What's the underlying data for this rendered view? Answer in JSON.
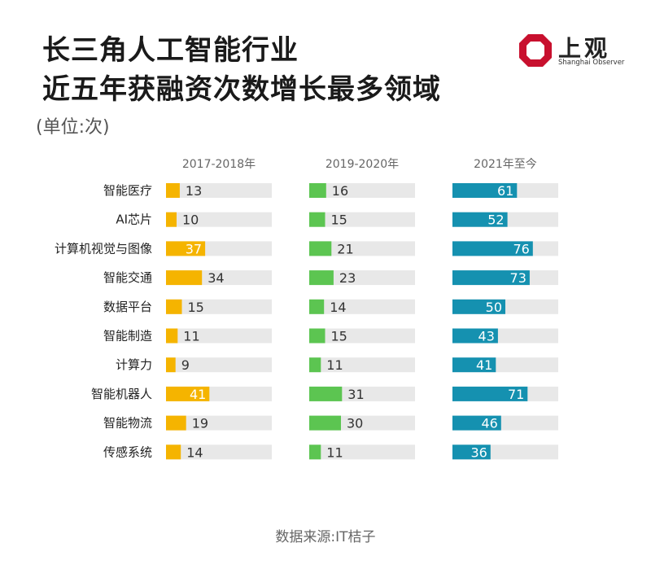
{
  "title_lines": [
    "长三角人工智能行业",
    "近五年获融资次数增长最多领域"
  ],
  "unit": "(单位:次)",
  "source": "数据来源:IT桔子",
  "logo": {
    "cn": "上观",
    "en": "Shanghai Observer",
    "icon": "octagon-logo-icon",
    "color": "#c8102e"
  },
  "colors": {
    "track": "#e8e8e8",
    "series": [
      "#f5b400",
      "#5cc551",
      "#1591b0"
    ]
  },
  "chart_data": {
    "type": "bar",
    "orientation": "horizontal",
    "categories": [
      "智能医疗",
      "AI芯片",
      "计算机视觉与图像",
      "智能交通",
      "数据平台",
      "智能制造",
      "计算力",
      "智能机器人",
      "智能物流",
      "传感系统"
    ],
    "series": [
      {
        "name": "2017-2018年",
        "values": [
          13,
          10,
          37,
          34,
          15,
          11,
          9,
          41,
          19,
          14
        ]
      },
      {
        "name": "2019-2020年",
        "values": [
          16,
          15,
          21,
          23,
          14,
          15,
          11,
          31,
          30,
          11
        ]
      },
      {
        "name": "2021年至今",
        "values": [
          61,
          52,
          76,
          73,
          50,
          43,
          41,
          71,
          46,
          36
        ]
      }
    ],
    "xlim": [
      0,
      100
    ]
  }
}
